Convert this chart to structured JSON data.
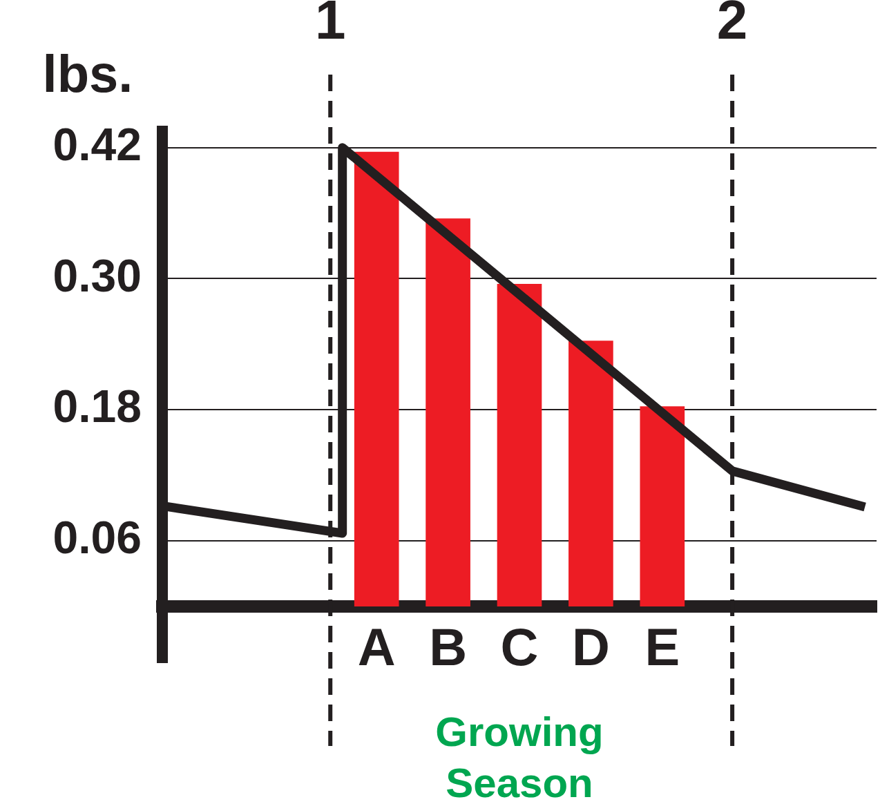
{
  "chart_data": {
    "type": "bar",
    "ylabel": "lbs.",
    "xlabel": "Growing Season",
    "categories": [
      null,
      null,
      null,
      "A",
      "B",
      "C",
      "D",
      "E",
      null,
      null,
      null
    ],
    "x2lim": [
      0.582,
      2.359
    ],
    "x2ticks": [
      1,
      2
    ],
    "ylim": [
      0,
      0.44
    ],
    "yticks": [
      0.06,
      0.18,
      {
        "value": 0.3,
        "label": "0.30"
      },
      0.42
    ],
    "grid": "y",
    "legend": false,
    "series": [
      {
        "color": "#ed1c24",
        "values": [
          null,
          null,
          null,
          0.416,
          0.355,
          0.295,
          0.243,
          0.183,
          null,
          null,
          null
        ]
      },
      {
        "type": "line",
        "axis": "x2",
        "color": "#231f20",
        "marker": "none",
        "line_style": "solid",
        "x": [
          0.582,
          1.03,
          1.03,
          2.0,
          2.33
        ],
        "values": [
          0.092,
          0.067,
          0.42,
          0.124,
          0.091
        ]
      }
    ],
    "ref_lines": [
      {
        "axis": "x2",
        "value": 1,
        "color": "#231f20",
        "line_style": "dashed"
      },
      {
        "axis": "x2",
        "value": 2,
        "color": "#231f20",
        "line_style": "dashed"
      }
    ]
  }
}
